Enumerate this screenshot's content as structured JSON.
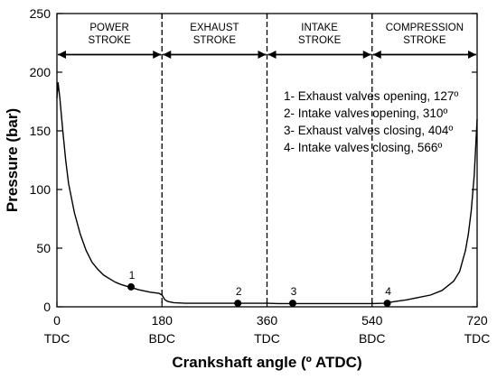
{
  "chart_data": {
    "type": "line",
    "xlabel": "Crankshaft angle (º ATDC)",
    "ylabel": "Pressure (bar)",
    "xlim": [
      0,
      720
    ],
    "ylim": [
      0,
      250
    ],
    "x_ticks": [
      0,
      180,
      360,
      540,
      720
    ],
    "x_tick_labels": [
      "0",
      "180",
      "360",
      "540",
      "720"
    ],
    "x_tick_sublabels": [
      "TDC",
      "BDC",
      "TDC",
      "BDC",
      "TDC"
    ],
    "y_ticks": [
      0,
      50,
      100,
      150,
      200,
      250
    ],
    "y_tick_labels": [
      "0",
      "50",
      "100",
      "150",
      "200",
      "250"
    ],
    "grid": false,
    "strokes": [
      {
        "lines": [
          "POWER",
          "STROKE"
        ],
        "from": 0,
        "to": 180
      },
      {
        "lines": [
          "EXHAUST",
          "STROKE"
        ],
        "from": 180,
        "to": 360
      },
      {
        "lines": [
          "INTAKE",
          "STROKE"
        ],
        "from": 360,
        "to": 540
      },
      {
        "lines": [
          "COMPRESSION",
          "STROKE"
        ],
        "from": 540,
        "to": 720
      }
    ],
    "stroke_arrow_level": 215,
    "dividers": [
      180,
      360,
      540
    ],
    "series": [
      {
        "x": [
          0,
          2,
          5,
          10,
          15,
          20,
          30,
          40,
          50,
          60,
          70,
          80,
          90,
          100,
          110,
          120,
          127,
          140,
          160,
          175,
          180,
          185,
          190,
          200,
          220,
          250,
          300,
          330,
          360,
          380,
          400,
          404,
          420,
          450,
          500,
          540,
          560,
          566,
          580,
          600,
          620,
          640,
          660,
          680,
          690,
          700,
          705,
          710,
          715,
          720
        ],
        "y": [
          178,
          191,
          178,
          150,
          125,
          105,
          80,
          62,
          48,
          38,
          32,
          27,
          24,
          21,
          19,
          17.5,
          16.5,
          14.5,
          12.5,
          11.5,
          10,
          6,
          4.5,
          3.5,
          3,
          3,
          3,
          3,
          3,
          2.8,
          2.8,
          2.8,
          2.8,
          2.8,
          2.8,
          2.8,
          3,
          3.5,
          4.5,
          6,
          8,
          10,
          14,
          22,
          30,
          48,
          62,
          82,
          112,
          160
        ]
      }
    ],
    "points": [
      {
        "label": "1",
        "x": 127,
        "y": 17
      },
      {
        "label": "2",
        "x": 310,
        "y": 3
      },
      {
        "label": "3",
        "x": 404,
        "y": 3
      },
      {
        "label": "4",
        "x": 566,
        "y": 3
      }
    ],
    "legend": [
      "1- Exhaust valves opening, 127º",
      "2- Intake valves opening, 310º",
      "3- Exhaust valves closing, 404º",
      "4- Intake valves closing, 566º"
    ]
  }
}
